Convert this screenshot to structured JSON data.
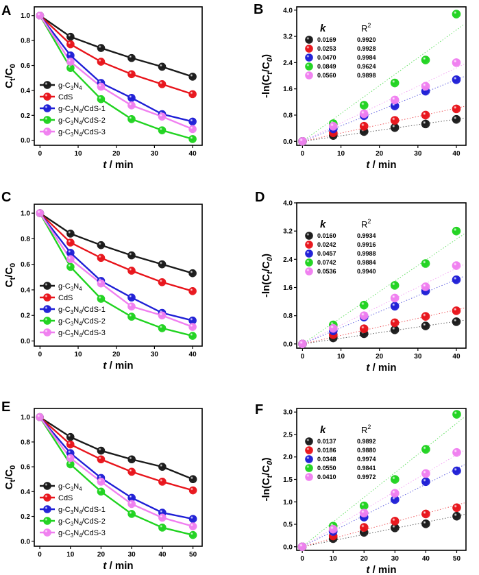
{
  "colors": {
    "g-C3N4": "#1a1a1a",
    "CdS": "#e8141b",
    "g-C3N4/CdS-1": "#1f1fd6",
    "g-C3N4/CdS-2": "#20d320",
    "g-C3N4/CdS-3": "#f07ff0"
  },
  "legend_labels": [
    {
      "key": "g-C3N4",
      "pre": "g-C",
      "sub1": "3",
      "mid": "N",
      "sub2": "4",
      "post": ""
    },
    {
      "key": "CdS",
      "pre": "CdS",
      "sub1": "",
      "mid": "",
      "sub2": "",
      "post": ""
    },
    {
      "key": "g-C3N4/CdS-1",
      "pre": "g-C",
      "sub1": "3",
      "mid": "N",
      "sub2": "4",
      "post": "/CdS-1"
    },
    {
      "key": "g-C3N4/CdS-2",
      "pre": "g-C",
      "sub1": "3",
      "mid": "N",
      "sub2": "4",
      "post": "/CdS-2"
    },
    {
      "key": "g-C3N4/CdS-3",
      "pre": "g-C",
      "sub1": "3",
      "mid": "N",
      "sub2": "4",
      "post": "/CdS-3"
    }
  ],
  "kr_header": {
    "k": "k",
    "r2": "R",
    "r2_sup": "2"
  },
  "xlabel": {
    "var": "t",
    "unit": " / min"
  },
  "ylabel_left": {
    "pre": "C",
    "sub1": "t",
    "mid": "/C",
    "sub2": "0"
  },
  "ylabel_right": {
    "pre": "-ln(C",
    "sub1": "t",
    "mid": "/C",
    "sub2": "0",
    "post": ")"
  },
  "chart_data": [
    {
      "panel": "A",
      "type": "line",
      "x": [
        0,
        8,
        16,
        24,
        32,
        40
      ],
      "xlim": [
        -1.5,
        42.5
      ],
      "ylim": [
        -0.04,
        1.07
      ],
      "xticks": [
        0,
        10,
        20,
        30,
        40
      ],
      "yticks": [
        0.0,
        0.2,
        0.4,
        0.6,
        0.8,
        1.0
      ],
      "ytick_labels": [
        "0.0",
        "0.2",
        "0.4",
        "0.6",
        "0.8",
        "1.0"
      ],
      "series": [
        {
          "name": "g-C3N4",
          "values": [
            1.0,
            0.83,
            0.74,
            0.66,
            0.59,
            0.51
          ]
        },
        {
          "name": "CdS",
          "values": [
            1.0,
            0.77,
            0.63,
            0.53,
            0.45,
            0.37
          ]
        },
        {
          "name": "g-C3N4/CdS-1",
          "values": [
            1.0,
            0.68,
            0.46,
            0.34,
            0.21,
            0.15
          ]
        },
        {
          "name": "g-C3N4/CdS-2",
          "values": [
            1.0,
            0.58,
            0.33,
            0.17,
            0.08,
            0.01
          ]
        },
        {
          "name": "g-C3N4/CdS-3",
          "values": [
            1.0,
            0.63,
            0.43,
            0.28,
            0.19,
            0.09
          ]
        }
      ]
    },
    {
      "panel": "B",
      "type": "scatter",
      "x": [
        0,
        8,
        16,
        24,
        32,
        40
      ],
      "xlim": [
        -1.5,
        42.5
      ],
      "ylim": [
        -0.12,
        4.1
      ],
      "xticks": [
        0,
        10,
        20,
        30,
        40
      ],
      "yticks": [
        0.0,
        0.8,
        1.6,
        2.4,
        3.2,
        4.0
      ],
      "ytick_labels": [
        "0.0",
        "0.8",
        "1.6",
        "2.4",
        "3.2",
        "4.0"
      ],
      "kr_table": [
        [
          "0.0169",
          "0.9920"
        ],
        [
          "0.0253",
          "0.9928"
        ],
        [
          "0.0470",
          "0.9984"
        ],
        [
          "0.0849",
          "0.9624"
        ],
        [
          "0.0560",
          "0.9898"
        ]
      ],
      "series": [
        {
          "name": "g-C3N4",
          "values": [
            0.0,
            0.18,
            0.3,
            0.42,
            0.53,
            0.67
          ],
          "slope": 0.0169
        },
        {
          "name": "CdS",
          "values": [
            0.0,
            0.26,
            0.46,
            0.64,
            0.8,
            0.99
          ],
          "slope": 0.0253
        },
        {
          "name": "g-C3N4/CdS-1",
          "values": [
            0.0,
            0.38,
            0.78,
            1.08,
            1.53,
            1.88
          ],
          "slope": 0.047
        },
        {
          "name": "g-C3N4/CdS-2",
          "values": [
            0.0,
            0.54,
            1.1,
            1.78,
            2.48,
            3.88
          ],
          "slope": 0.0849
        },
        {
          "name": "g-C3N4/CdS-3",
          "values": [
            0.0,
            0.46,
            0.84,
            1.26,
            1.68,
            2.4
          ],
          "slope": 0.056
        }
      ]
    },
    {
      "panel": "C",
      "type": "line",
      "x": [
        0,
        8,
        16,
        24,
        32,
        40
      ],
      "xlim": [
        -1.5,
        42.5
      ],
      "ylim": [
        -0.04,
        1.07
      ],
      "xticks": [
        0,
        10,
        20,
        30,
        40
      ],
      "yticks": [
        0.0,
        0.2,
        0.4,
        0.6,
        0.8,
        1.0
      ],
      "ytick_labels": [
        "0.0",
        "0.2",
        "0.4",
        "0.6",
        "0.8",
        "1.0"
      ],
      "series": [
        {
          "name": "g-C3N4",
          "values": [
            1.0,
            0.84,
            0.75,
            0.67,
            0.6,
            0.53
          ]
        },
        {
          "name": "CdS",
          "values": [
            1.0,
            0.77,
            0.65,
            0.55,
            0.46,
            0.39
          ]
        },
        {
          "name": "g-C3N4/CdS-1",
          "values": [
            1.0,
            0.69,
            0.47,
            0.34,
            0.22,
            0.16
          ]
        },
        {
          "name": "g-C3N4/CdS-2",
          "values": [
            1.0,
            0.58,
            0.33,
            0.19,
            0.1,
            0.04
          ]
        },
        {
          "name": "g-C3N4/CdS-3",
          "values": [
            1.0,
            0.64,
            0.45,
            0.27,
            0.2,
            0.11
          ]
        }
      ]
    },
    {
      "panel": "D",
      "type": "scatter",
      "x": [
        0,
        8,
        16,
        24,
        32,
        40
      ],
      "xlim": [
        -1.5,
        42.5
      ],
      "ylim": [
        -0.12,
        4.0
      ],
      "xticks": [
        0,
        10,
        20,
        30,
        40
      ],
      "yticks": [
        0.0,
        0.8,
        1.6,
        2.4,
        3.2,
        4.0
      ],
      "ytick_labels": [
        "0.0",
        "0.8",
        "1.6",
        "2.4",
        "3.2",
        "4.0"
      ],
      "kr_table": [
        [
          "0.0160",
          "0.9934"
        ],
        [
          "0.0242",
          "0.9916"
        ],
        [
          "0.0457",
          "0.9988"
        ],
        [
          "0.0742",
          "0.9884"
        ],
        [
          "0.0536",
          "0.9940"
        ]
      ],
      "series": [
        {
          "name": "g-C3N4",
          "values": [
            0.0,
            0.17,
            0.29,
            0.4,
            0.51,
            0.63
          ],
          "slope": 0.016
        },
        {
          "name": "CdS",
          "values": [
            0.0,
            0.26,
            0.43,
            0.6,
            0.78,
            0.94
          ],
          "slope": 0.0242
        },
        {
          "name": "g-C3N4/CdS-1",
          "values": [
            0.0,
            0.37,
            0.76,
            1.07,
            1.5,
            1.82
          ],
          "slope": 0.0457
        },
        {
          "name": "g-C3N4/CdS-2",
          "values": [
            0.0,
            0.54,
            1.1,
            1.66,
            2.28,
            3.2
          ],
          "slope": 0.0742
        },
        {
          "name": "g-C3N4/CdS-3",
          "values": [
            0.0,
            0.44,
            0.8,
            1.3,
            1.62,
            2.22
          ],
          "slope": 0.0536
        }
      ]
    },
    {
      "panel": "E",
      "type": "line",
      "x": [
        0,
        10,
        20,
        30,
        40,
        50
      ],
      "xlim": [
        -1.8,
        53
      ],
      "ylim": [
        -0.04,
        1.07
      ],
      "xticks": [
        0,
        10,
        20,
        30,
        40,
        50
      ],
      "yticks": [
        0.0,
        0.2,
        0.4,
        0.6,
        0.8,
        1.0
      ],
      "ytick_labels": [
        "0.0",
        "0.2",
        "0.4",
        "0.6",
        "0.8",
        "1.0"
      ],
      "series": [
        {
          "name": "g-C3N4",
          "values": [
            1.0,
            0.84,
            0.73,
            0.66,
            0.6,
            0.5
          ]
        },
        {
          "name": "CdS",
          "values": [
            1.0,
            0.78,
            0.66,
            0.56,
            0.48,
            0.41
          ]
        },
        {
          "name": "g-C3N4/CdS-1",
          "values": [
            1.0,
            0.71,
            0.51,
            0.35,
            0.23,
            0.18
          ]
        },
        {
          "name": "g-C3N4/CdS-2",
          "values": [
            1.0,
            0.62,
            0.4,
            0.22,
            0.11,
            0.05
          ]
        },
        {
          "name": "g-C3N4/CdS-3",
          "values": [
            1.0,
            0.67,
            0.48,
            0.3,
            0.19,
            0.12
          ]
        }
      ]
    },
    {
      "panel": "F",
      "type": "scatter",
      "x": [
        0,
        10,
        20,
        30,
        40,
        50
      ],
      "xlim": [
        -1.8,
        53
      ],
      "ylim": [
        -0.08,
        3.08
      ],
      "xticks": [
        0,
        10,
        20,
        30,
        40,
        50
      ],
      "yticks": [
        0.0,
        0.5,
        1.0,
        1.5,
        2.0,
        2.5,
        3.0
      ],
      "ytick_labels": [
        "0.0",
        "0.5",
        "1.0",
        "1.5",
        "2.0",
        "2.5",
        "3.0"
      ],
      "kr_table": [
        [
          "0.0137",
          "0.9892"
        ],
        [
          "0.0186",
          "0.9880"
        ],
        [
          "0.0348",
          "0.9974"
        ],
        [
          "0.0550",
          "0.9841"
        ],
        [
          "0.0410",
          "0.9972"
        ]
      ],
      "series": [
        {
          "name": "g-C3N4",
          "values": [
            0.0,
            0.18,
            0.32,
            0.42,
            0.51,
            0.68
          ],
          "slope": 0.0137
        },
        {
          "name": "CdS",
          "values": [
            0.0,
            0.24,
            0.43,
            0.57,
            0.73,
            0.87
          ],
          "slope": 0.0186
        },
        {
          "name": "g-C3N4/CdS-1",
          "values": [
            0.0,
            0.34,
            0.66,
            1.05,
            1.45,
            1.69
          ],
          "slope": 0.0348
        },
        {
          "name": "g-C3N4/CdS-2",
          "values": [
            0.0,
            0.46,
            0.91,
            1.5,
            2.17,
            2.95
          ],
          "slope": 0.055
        },
        {
          "name": "g-C3N4/CdS-3",
          "values": [
            0.0,
            0.39,
            0.75,
            1.19,
            1.63,
            2.1
          ],
          "slope": 0.041
        }
      ]
    }
  ]
}
